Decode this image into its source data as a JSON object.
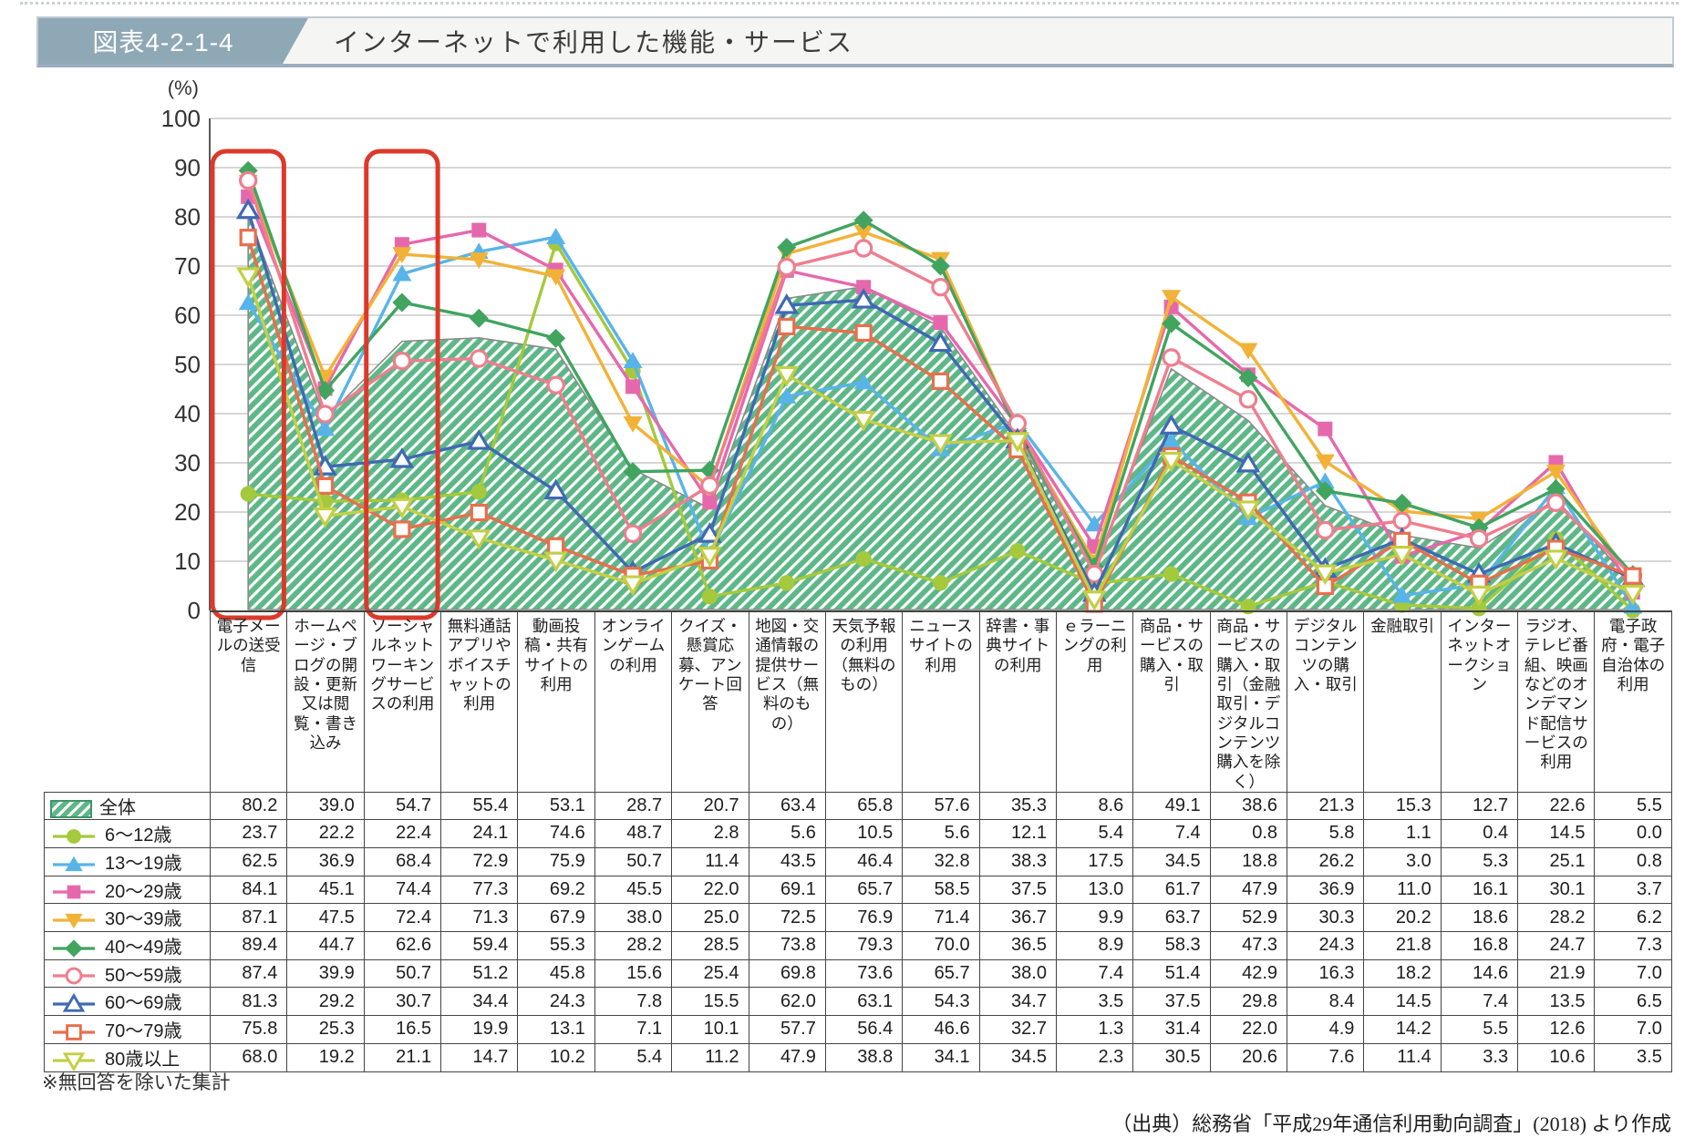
{
  "header": {
    "figure_label": "図表4-2-1-4",
    "title": "インターネットで利用した機能・サービス"
  },
  "chart_data": {
    "type": "line",
    "unit_label": "(%)",
    "ylim": [
      0,
      100
    ],
    "ytick_interval": 10,
    "grid": true,
    "legend_position": "table-left",
    "highlighted_category_indexes": [
      0,
      2
    ],
    "highlight_color": "#dc392b",
    "grid_color": "#c9c9c9",
    "axis_color": "#595959",
    "hatch_stripe_color": "#ffffff",
    "categories": [
      "電子メールの送受信",
      "ホームページ・ブログの開設・更新又は閲覧・書き込み",
      "ソーシャルネットワーキングサービスの利用",
      "無料通話アプリやボイスチャットの利用",
      "動画投稿・共有サイトの利用",
      "オンラインゲームの利用",
      "クイズ・懸賞応募、アンケート回答",
      "地図・交通情報の提供サービス（無料のもの）",
      "天気予報の利用（無料のもの）",
      "ニュースサイトの利用",
      "辞書・事典サイトの利用",
      "ｅラーニングの利用",
      "商品・サービスの購入・取引",
      "商品・サービスの購入・取引（金融取引・デジタルコンテンツ購入を除く）",
      "デジタルコンテンツの購入・取引",
      "金融取引",
      "インターネットオークション",
      "ラジオ、テレビ番組、映画などのオンデマンド配信サービスの利用",
      "電子政府・電子自治体の利用"
    ],
    "series": [
      {
        "name": "全体",
        "type": "area",
        "marker": "hatch-area",
        "open": false,
        "color": "#5eb787",
        "edge": "#8a8a8a",
        "values": [
          80.2,
          39.0,
          54.7,
          55.4,
          53.1,
          28.7,
          20.7,
          63.4,
          65.8,
          57.6,
          35.3,
          8.6,
          49.1,
          38.6,
          21.3,
          15.3,
          12.7,
          22.6,
          5.5
        ]
      },
      {
        "name": "6〜12歳",
        "type": "line",
        "marker": "circle",
        "open": false,
        "color": "#a4c93c",
        "values": [
          23.7,
          22.2,
          22.4,
          24.1,
          74.6,
          48.7,
          2.8,
          5.6,
          10.5,
          5.6,
          12.1,
          5.4,
          7.4,
          0.8,
          5.8,
          1.1,
          0.4,
          14.5,
          0.0
        ]
      },
      {
        "name": "13〜19歳",
        "type": "line",
        "marker": "triangle",
        "open": false,
        "color": "#58b4e8",
        "values": [
          62.5,
          36.9,
          68.4,
          72.9,
          75.9,
          50.7,
          11.4,
          43.5,
          46.4,
          32.8,
          38.3,
          17.5,
          34.5,
          18.8,
          26.2,
          3.0,
          5.3,
          25.1,
          0.8
        ]
      },
      {
        "name": "20〜29歳",
        "type": "line",
        "marker": "square",
        "open": false,
        "color": "#e668ac",
        "values": [
          84.1,
          45.1,
          74.4,
          77.3,
          69.2,
          45.5,
          22.0,
          69.1,
          65.7,
          58.5,
          37.5,
          13.0,
          61.7,
          47.9,
          36.9,
          11.0,
          16.1,
          30.1,
          3.7
        ]
      },
      {
        "name": "30〜39歳",
        "type": "line",
        "marker": "triangle-down",
        "open": false,
        "color": "#f2b237",
        "values": [
          87.1,
          47.5,
          72.4,
          71.3,
          67.9,
          38.0,
          25.0,
          72.5,
          76.9,
          71.4,
          36.7,
          9.9,
          63.7,
          52.9,
          30.3,
          20.2,
          18.6,
          28.2,
          6.2
        ]
      },
      {
        "name": "40〜49歳",
        "type": "line",
        "marker": "diamond",
        "open": false,
        "color": "#41a45f",
        "values": [
          89.4,
          44.7,
          62.6,
          59.4,
          55.3,
          28.2,
          28.5,
          73.8,
          79.3,
          70.0,
          36.5,
          8.9,
          58.3,
          47.3,
          24.3,
          21.8,
          16.8,
          24.7,
          7.3
        ]
      },
      {
        "name": "50〜59歳",
        "type": "line",
        "marker": "circle",
        "open": true,
        "color": "#ee7e8e",
        "values": [
          87.4,
          39.9,
          50.7,
          51.2,
          45.8,
          15.6,
          25.4,
          69.8,
          73.6,
          65.7,
          38.0,
          7.4,
          51.4,
          42.9,
          16.3,
          18.2,
          14.6,
          21.9,
          7.0
        ]
      },
      {
        "name": "60〜69歳",
        "type": "line",
        "marker": "triangle",
        "open": true,
        "color": "#3f69b3",
        "values": [
          81.3,
          29.2,
          30.7,
          34.4,
          24.3,
          7.8,
          15.5,
          62.0,
          63.1,
          54.3,
          34.7,
          3.5,
          37.5,
          29.8,
          8.4,
          14.5,
          7.4,
          13.5,
          6.5
        ]
      },
      {
        "name": "70〜79歳",
        "type": "line",
        "marker": "square",
        "open": true,
        "color": "#e86f4c",
        "values": [
          75.8,
          25.3,
          16.5,
          19.9,
          13.1,
          7.1,
          10.1,
          57.7,
          56.4,
          46.6,
          32.7,
          1.3,
          31.4,
          22.0,
          4.9,
          14.2,
          5.5,
          12.6,
          7.0
        ]
      },
      {
        "name": "80歳以上",
        "type": "line",
        "marker": "triangle-down",
        "open": true,
        "color": "#c3cf44",
        "values": [
          68.0,
          19.2,
          21.1,
          14.7,
          10.2,
          5.4,
          11.2,
          47.9,
          38.8,
          34.1,
          34.5,
          2.3,
          30.5,
          20.6,
          7.6,
          11.4,
          3.3,
          10.6,
          3.5
        ]
      }
    ]
  },
  "footnote": "※無回答を除いた集計",
  "source": "（出典）総務省「平成29年通信利用動向調査」(2018) より作成"
}
